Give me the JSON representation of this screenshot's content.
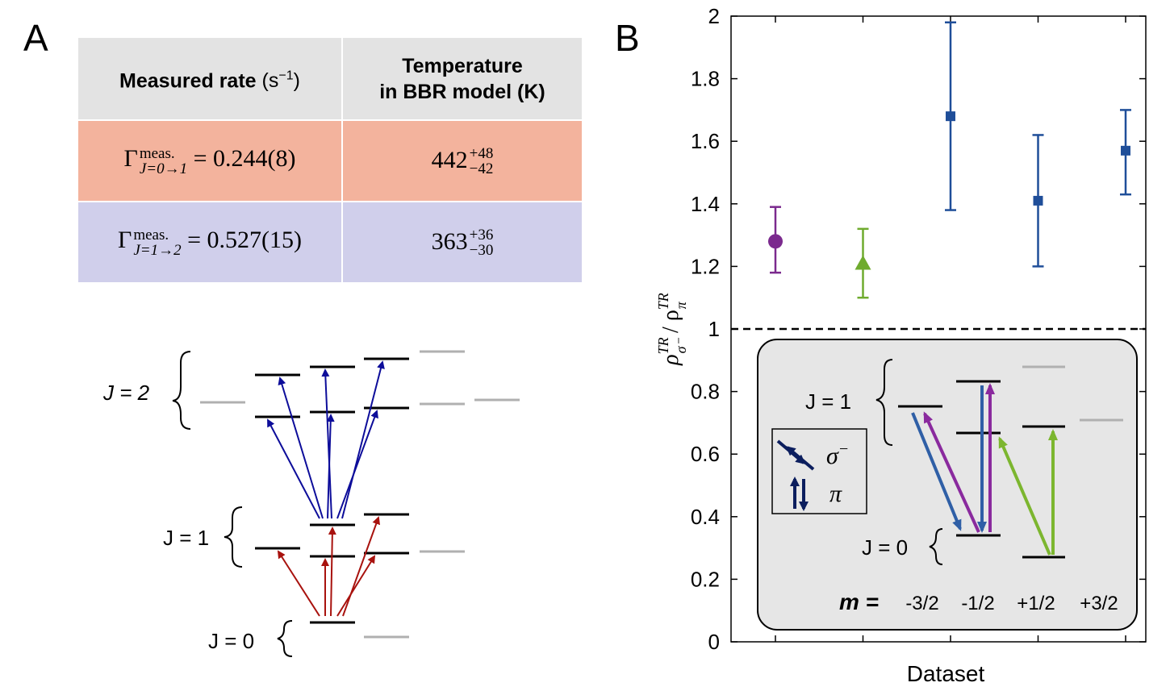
{
  "panel_a": {
    "letter": "A",
    "table": {
      "header_rate": "Measured rate",
      "header_rate_unit": "(s",
      "header_rate_unit_exp": "−1",
      "header_rate_unit_close": ")",
      "header_temp_line1": "Temperature",
      "header_temp_line2": "in BBR model (K)",
      "rows": [
        {
          "symbol": "Γ",
          "sup": "meas.",
          "sub": "J=0→1",
          "value": "= 0.244(8)",
          "temp": "442",
          "temp_plus": "+48",
          "temp_minus": "−42",
          "color": "#f3b39d"
        },
        {
          "symbol": "Γ",
          "sup": "meas.",
          "sub": "J=1→2",
          "value": "= 0.527(15)",
          "temp": "363",
          "temp_plus": "+36",
          "temp_minus": "−30",
          "color": "#d0cfeb"
        }
      ]
    },
    "diagram": {
      "labels": {
        "j2": "J = 2",
        "j1": "J = 1",
        "j0": "J = 0"
      },
      "colors": {
        "upper_arrows": "#0d0d9a",
        "lower_arrows": "#a8120e",
        "active_level": "#000000",
        "inactive_level": "#b0b0b0"
      }
    }
  },
  "panel_b": {
    "letter": "B",
    "chart_data": {
      "type": "scatter",
      "xlabel": "Dataset",
      "ylabel": "ρ^TR_σ⁻ / ρ^TR_π",
      "ylim": [
        0,
        2
      ],
      "yticks": [
        "0",
        "0.2",
        "0.4",
        "0.6",
        "0.8",
        "1",
        "1.2",
        "1.4",
        "1.6",
        "1.8",
        "2"
      ],
      "reference_line": 1,
      "points": [
        {
          "x": 1,
          "y": 1.28,
          "err_low": 1.18,
          "err_high": 1.39,
          "marker": "circle",
          "color": "#7b2a8e"
        },
        {
          "x": 2,
          "y": 1.21,
          "err_low": 1.1,
          "err_high": 1.32,
          "marker": "triangle",
          "color": "#6fab2e"
        },
        {
          "x": 3,
          "y": 1.68,
          "err_low": 1.38,
          "err_high": 1.98,
          "marker": "square",
          "color": "#1f4e99"
        },
        {
          "x": 4,
          "y": 1.41,
          "err_low": 1.2,
          "err_high": 1.62,
          "marker": "square",
          "color": "#1f4e99"
        },
        {
          "x": 5,
          "y": 1.57,
          "err_low": 1.43,
          "err_high": 1.7,
          "marker": "square",
          "color": "#1f4e99"
        }
      ]
    },
    "inset": {
      "j1_label": "J = 1",
      "j0_label": "J = 0",
      "m_label": "m =",
      "m_values": [
        "-3/2",
        "-1/2",
        "+1/2",
        "+3/2"
      ],
      "legend": {
        "sigma": "σ",
        "sigma_sup": "−",
        "pi": "π"
      },
      "colors": {
        "blue": "#2f5fa6",
        "purple": "#8a2a9e",
        "green": "#7cb62f",
        "legend_arrow": "#0c1e5e"
      }
    }
  }
}
